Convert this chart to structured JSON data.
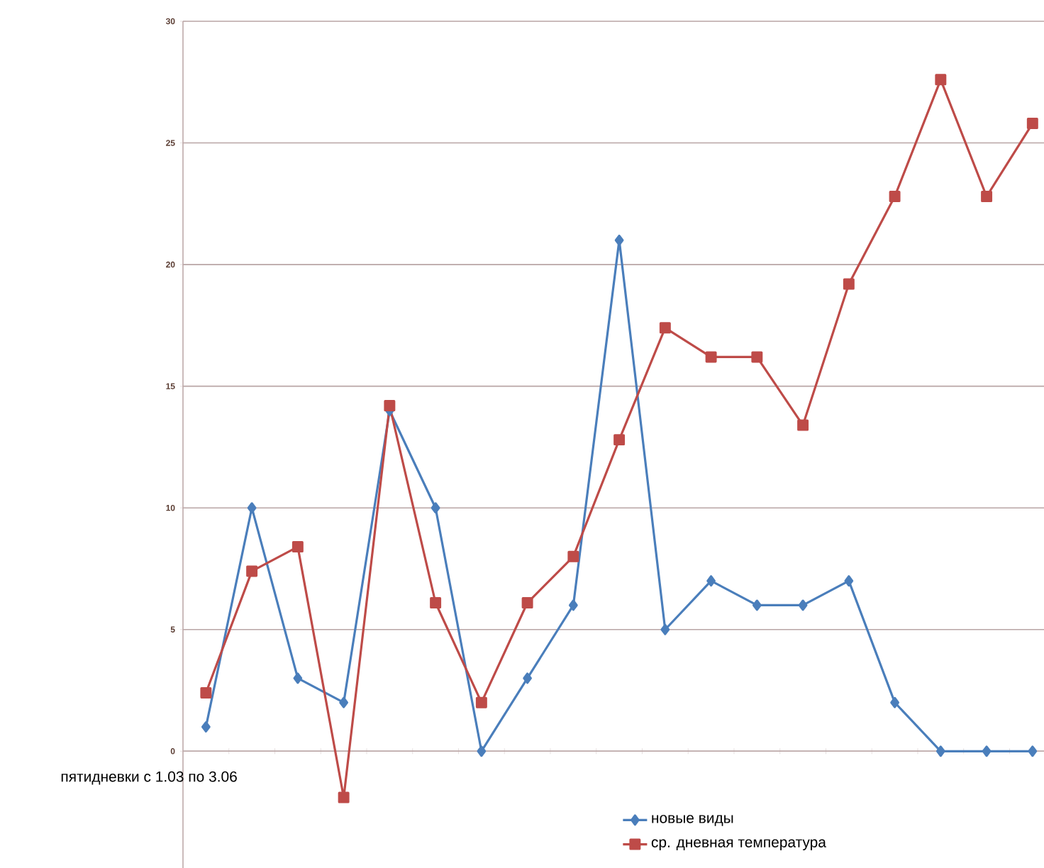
{
  "chart_data": {
    "type": "line",
    "xlabel": "пятидневки с 1.03 по 3.06",
    "categories": [
      null,
      null,
      null,
      null,
      null,
      null,
      null,
      null,
      null,
      null,
      null,
      null,
      null,
      null,
      null,
      null,
      null,
      null,
      null
    ],
    "series": [
      {
        "name": "новые виды",
        "color": "#4a7ebb",
        "marker": "diamond",
        "values": [
          1,
          10,
          3,
          2,
          14,
          10,
          0,
          3,
          6,
          21,
          5,
          7,
          6,
          6,
          7,
          2,
          0,
          0,
          0
        ]
      },
      {
        "name": "ср. дневная температура",
        "color": "#be4b48",
        "marker": "square",
        "values": [
          2.4,
          7.4,
          8.4,
          -1.9,
          14.2,
          6.1,
          2,
          6.1,
          8,
          12.8,
          17.4,
          16.2,
          16.2,
          13.4,
          19.2,
          22.8,
          27.6,
          22.8,
          25.8
        ]
      }
    ],
    "ylim": [
      -4.8,
      30
    ],
    "yticks": [
      0,
      5,
      10,
      15,
      20,
      25,
      30
    ],
    "grid": "y",
    "legend": "bottom",
    "line_style": "solid"
  }
}
